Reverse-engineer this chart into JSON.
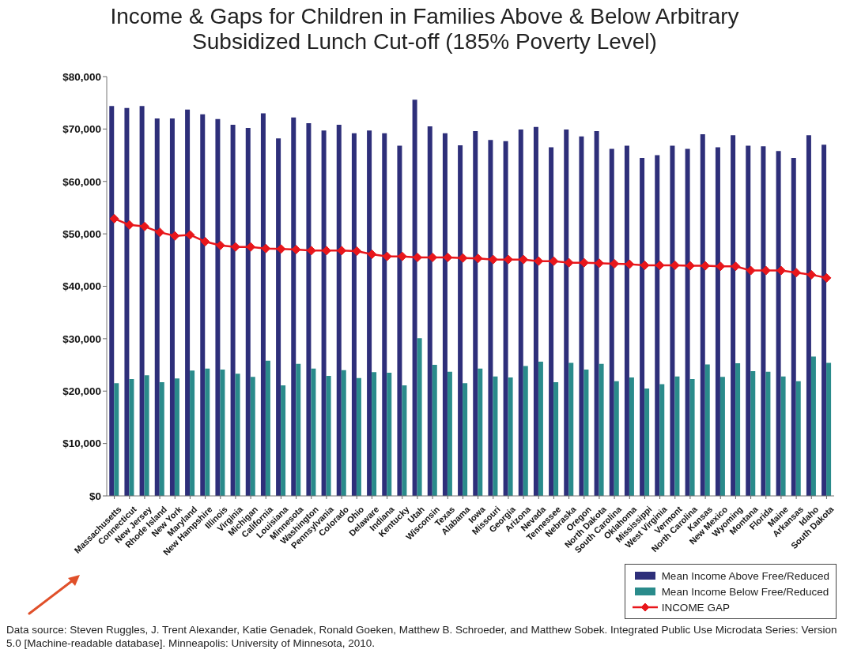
{
  "chart_data": {
    "type": "bar",
    "title": "Income & Gaps for Children in Families Above & Below Arbitrary Subsidized Lunch Cut-off (185% Poverty Level)",
    "categories": [
      "Massachusetts",
      "Connecticut",
      "New Jersey",
      "Rhode Island",
      "New York",
      "Maryland",
      "New Hampshire",
      "Illinois",
      "Virginia",
      "Michigan",
      "California",
      "Louisiana",
      "Minnesota",
      "Washington",
      "Pennsylvania",
      "Colorado",
      "Ohio",
      "Delaware",
      "Indiana",
      "Kentucky",
      "Utah",
      "Wisconsin",
      "Texas",
      "Alabama",
      "Iowa",
      "Missouri",
      "Georgia",
      "Arizona",
      "Nevada",
      "Tennessee",
      "Nebraska",
      "Oregon",
      "North Dakota",
      "South Carolina",
      "Oklahoma",
      "Mississippi",
      "West Virginia",
      "Vermont",
      "North Carolina",
      "Kansas",
      "New Mexico",
      "Wyoming",
      "Montana",
      "Florida",
      "Maine",
      "Arkansas",
      "Idaho",
      "South Dakota"
    ],
    "series": [
      {
        "name": "Mean Income Above Free/Reduced",
        "color": "#2e2f7a",
        "values": [
          74400,
          74000,
          74400,
          72000,
          72000,
          73700,
          72800,
          71900,
          70800,
          70200,
          73000,
          68200,
          72200,
          71100,
          69700,
          70800,
          69200,
          69700,
          69200,
          66800,
          75600,
          70500,
          69200,
          66900,
          69600,
          67900,
          67700,
          69900,
          70400,
          66500,
          69900,
          68600,
          69600,
          66200,
          66800,
          64500,
          65000,
          66800,
          66200,
          69000,
          66500,
          68800,
          66800,
          66700,
          65800,
          64500,
          68800,
          67000
        ]
      },
      {
        "name": "Mean Income Below Free/Reduced",
        "color": "#2a8b8b",
        "values": [
          21500,
          22300,
          23000,
          21700,
          22400,
          23900,
          24300,
          24100,
          23300,
          22700,
          25800,
          21100,
          25200,
          24300,
          22900,
          24000,
          22500,
          23600,
          23500,
          21100,
          30100,
          25000,
          23700,
          21500,
          24300,
          22800,
          22600,
          24800,
          25600,
          21700,
          25400,
          24100,
          25200,
          21900,
          22600,
          20500,
          21300,
          22800,
          22300,
          25100,
          22700,
          25300,
          23800,
          23700,
          22800,
          21900,
          26600,
          25400
        ]
      },
      {
        "name": "INCOME GAP",
        "type": "line",
        "color": "#e8161b",
        "values": [
          52900,
          51700,
          51400,
          50300,
          49600,
          49800,
          48500,
          47800,
          47500,
          47500,
          47200,
          47100,
          47000,
          46800,
          46800,
          46800,
          46700,
          46100,
          45700,
          45700,
          45500,
          45500,
          45500,
          45400,
          45300,
          45100,
          45100,
          45100,
          44800,
          44800,
          44500,
          44500,
          44400,
          44300,
          44200,
          44000,
          44000,
          44000,
          43900,
          43900,
          43800,
          43800,
          43000,
          43000,
          43000,
          42600,
          42200,
          41600
        ]
      }
    ],
    "ylim": [
      0,
      80000
    ],
    "yticks": [
      {
        "value": 0,
        "label": "$0"
      },
      {
        "value": 10000,
        "label": "$10,000"
      },
      {
        "value": 20000,
        "label": "$20,000"
      },
      {
        "value": 30000,
        "label": "$30,000"
      },
      {
        "value": 40000,
        "label": "$40,000"
      },
      {
        "value": 50000,
        "label": "$50,000"
      },
      {
        "value": 60000,
        "label": "$60,000"
      },
      {
        "value": 70000,
        "label": "$70,000"
      },
      {
        "value": 80000,
        "label": "$80,000"
      }
    ],
    "marker": "diamond",
    "legend": "bottom right",
    "annotations": [
      "Data source: Steven Ruggles, J. Trent Alexander, Katie Genadek, Ronald Goeken, Matthew B. Schroeder, and Matthew Sobek. Integrated Public Use Microdata Series: Version 5.0 [Machine-readable database]. Minneapolis: University of Minnesota, 2010."
    ]
  }
}
